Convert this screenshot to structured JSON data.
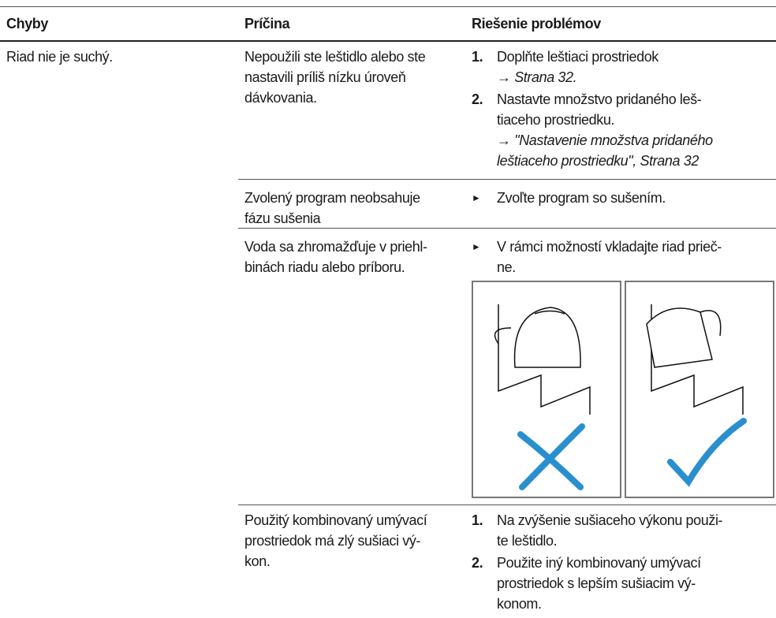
{
  "table": {
    "header": [
      "Chyby",
      "Príčina",
      "Riešenie problémov"
    ],
    "rows": [
      {
        "fault": "Riad nie je suchý.",
        "cause": [
          "Nepoužili ste leštidlo alebo ste",
          "nastavili príliš nízku úroveň",
          "dávkovania."
        ],
        "steps": [
          {
            "marker": "1.",
            "lines": [
              "Doplňte leštiaci prostriedok"
            ],
            "refs": [
              "→ Strana 32."
            ]
          },
          {
            "marker": "2.",
            "lines": [
              "Nastavte množstvo pridaného leš-",
              "tiaceho prostriedku."
            ],
            "refs": [
              "→ \"Nastavenie množstva pridaného",
              "leštiaceho prostriedku\", Strana 32"
            ]
          }
        ]
      },
      {
        "cause": [
          "Zvolený program neobsahuje",
          "fázu sušenia"
        ],
        "steps": [
          {
            "marker": "►",
            "lines": [
              "Zvoľte program so sušením."
            ],
            "refs": []
          }
        ]
      },
      {
        "cause": [
          "Voda sa zhromažďuje v priehl-",
          "binách riadu alebo príboru."
        ],
        "steps": [
          {
            "marker": "►",
            "lines": [
              "V rámci možností vkladajte riad prieč-",
              "ne."
            ],
            "refs": []
          }
        ]
      },
      {
        "cause": [
          "Použitý kombinovaný umývací",
          "prostriedok má zlý sušiaci vý-",
          "kon."
        ],
        "steps": [
          {
            "marker": "1.",
            "lines": [
              "Na zvýšenie sušiaceho výkonu použi-",
              "te leštidlo."
            ],
            "refs": []
          },
          {
            "marker": "2.",
            "lines": [
              "Použite iný kombinovaný umývací",
              "prostriedok s lepším sušiacim vý-",
              "konom."
            ],
            "refs": []
          }
        ]
      }
    ]
  }
}
